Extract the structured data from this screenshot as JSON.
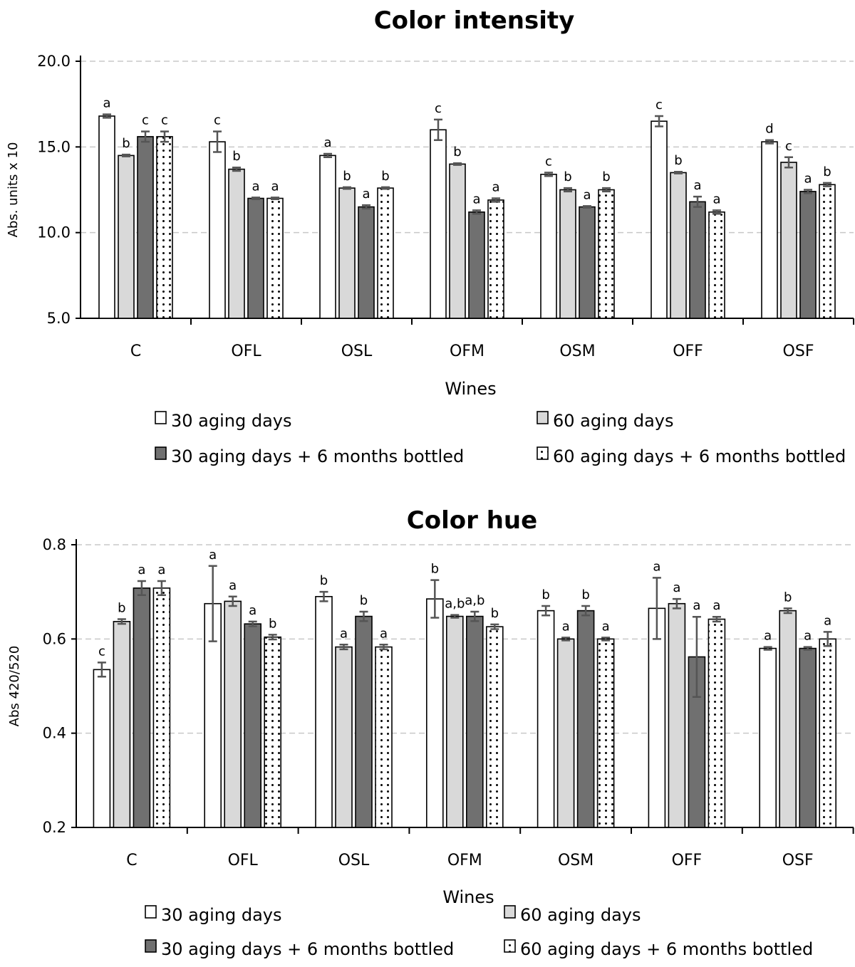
{
  "chart_data": [
    {
      "type": "bar",
      "title": "Color intensity",
      "xlabel": "Wines",
      "ylabel": "Abs. units x 10",
      "ylim": [
        5.0,
        20.0
      ],
      "yticks": [
        "5.0",
        "10.0",
        "15.0",
        "20.0"
      ],
      "ytick_values": [
        5.0,
        10.0,
        15.0,
        20.0
      ],
      "categories": [
        "C",
        "OFL",
        "OSL",
        "OFM",
        "OSM",
        "OFF",
        "OSF"
      ],
      "series": [
        {
          "name": "30 aging days",
          "values": [
            16.8,
            15.3,
            14.5,
            16.0,
            13.4,
            16.5,
            15.3
          ],
          "errors": [
            0.1,
            0.6,
            0.1,
            0.6,
            0.1,
            0.3,
            0.1
          ],
          "labels": [
            "a",
            "c",
            "a",
            "c",
            "c",
            "c",
            "d"
          ]
        },
        {
          "name": "60 aging days",
          "values": [
            14.5,
            13.7,
            12.6,
            14.0,
            12.5,
            13.5,
            14.1
          ],
          "errors": [
            0.05,
            0.1,
            0.05,
            0.05,
            0.1,
            0.05,
            0.3
          ],
          "labels": [
            "b",
            "b",
            "b",
            "b",
            "b",
            "b",
            "c"
          ]
        },
        {
          "name": "30 aging days + 6 months bottled",
          "values": [
            15.6,
            12.0,
            11.5,
            11.2,
            11.5,
            11.8,
            12.4
          ],
          "errors": [
            0.3,
            0.05,
            0.1,
            0.1,
            0.05,
            0.3,
            0.1
          ],
          "labels": [
            "c",
            "a",
            "a",
            "a",
            "a",
            "a",
            "a"
          ]
        },
        {
          "name": "60 aging days + 6 months bottled",
          "values": [
            15.6,
            12.0,
            12.6,
            11.9,
            12.5,
            11.2,
            12.8
          ],
          "errors": [
            0.3,
            0.05,
            0.05,
            0.1,
            0.1,
            0.1,
            0.1
          ],
          "labels": [
            "c",
            "a",
            "b",
            "a",
            "b",
            "a",
            "b"
          ]
        }
      ]
    },
    {
      "type": "bar",
      "title": "Color hue",
      "xlabel": "Wines",
      "ylabel": "Abs 420/520",
      "ylim": [
        0.2,
        0.8
      ],
      "yticks": [
        "0.2",
        "0.4",
        "0.6",
        "0.8"
      ],
      "ytick_values": [
        0.2,
        0.4,
        0.6,
        0.8
      ],
      "categories": [
        "C",
        "OFL",
        "OSL",
        "OFM",
        "OSM",
        "OFF",
        "OSF"
      ],
      "series": [
        {
          "name": "30 aging days",
          "values": [
            0.535,
            0.675,
            0.69,
            0.685,
            0.66,
            0.665,
            0.58
          ],
          "errors": [
            0.015,
            0.08,
            0.01,
            0.04,
            0.01,
            0.065,
            0.003
          ],
          "labels": [
            "c",
            "a",
            "b",
            "b",
            "b",
            "a",
            "a"
          ]
        },
        {
          "name": "60 aging days",
          "values": [
            0.637,
            0.68,
            0.583,
            0.648,
            0.6,
            0.675,
            0.66
          ],
          "errors": [
            0.005,
            0.01,
            0.005,
            0.003,
            0.003,
            0.01,
            0.005
          ],
          "labels": [
            "b",
            "a",
            "a",
            "a,b",
            "a",
            "a",
            "b"
          ]
        },
        {
          "name": "30 aging days + 6 months bottled",
          "values": [
            0.708,
            0.632,
            0.648,
            0.648,
            0.66,
            0.562,
            0.58
          ],
          "errors": [
            0.015,
            0.005,
            0.01,
            0.01,
            0.01,
            0.085,
            0.003
          ],
          "labels": [
            "a",
            "a",
            "b",
            "a,b",
            "b",
            "a",
            "a"
          ]
        },
        {
          "name": "60 aging days + 6 months bottled",
          "values": [
            0.708,
            0.604,
            0.583,
            0.626,
            0.6,
            0.642,
            0.6
          ],
          "errors": [
            0.015,
            0.005,
            0.005,
            0.005,
            0.003,
            0.005,
            0.015
          ],
          "labels": [
            "a",
            "b",
            "a",
            "b",
            "a",
            "a",
            "a"
          ]
        }
      ]
    }
  ]
}
